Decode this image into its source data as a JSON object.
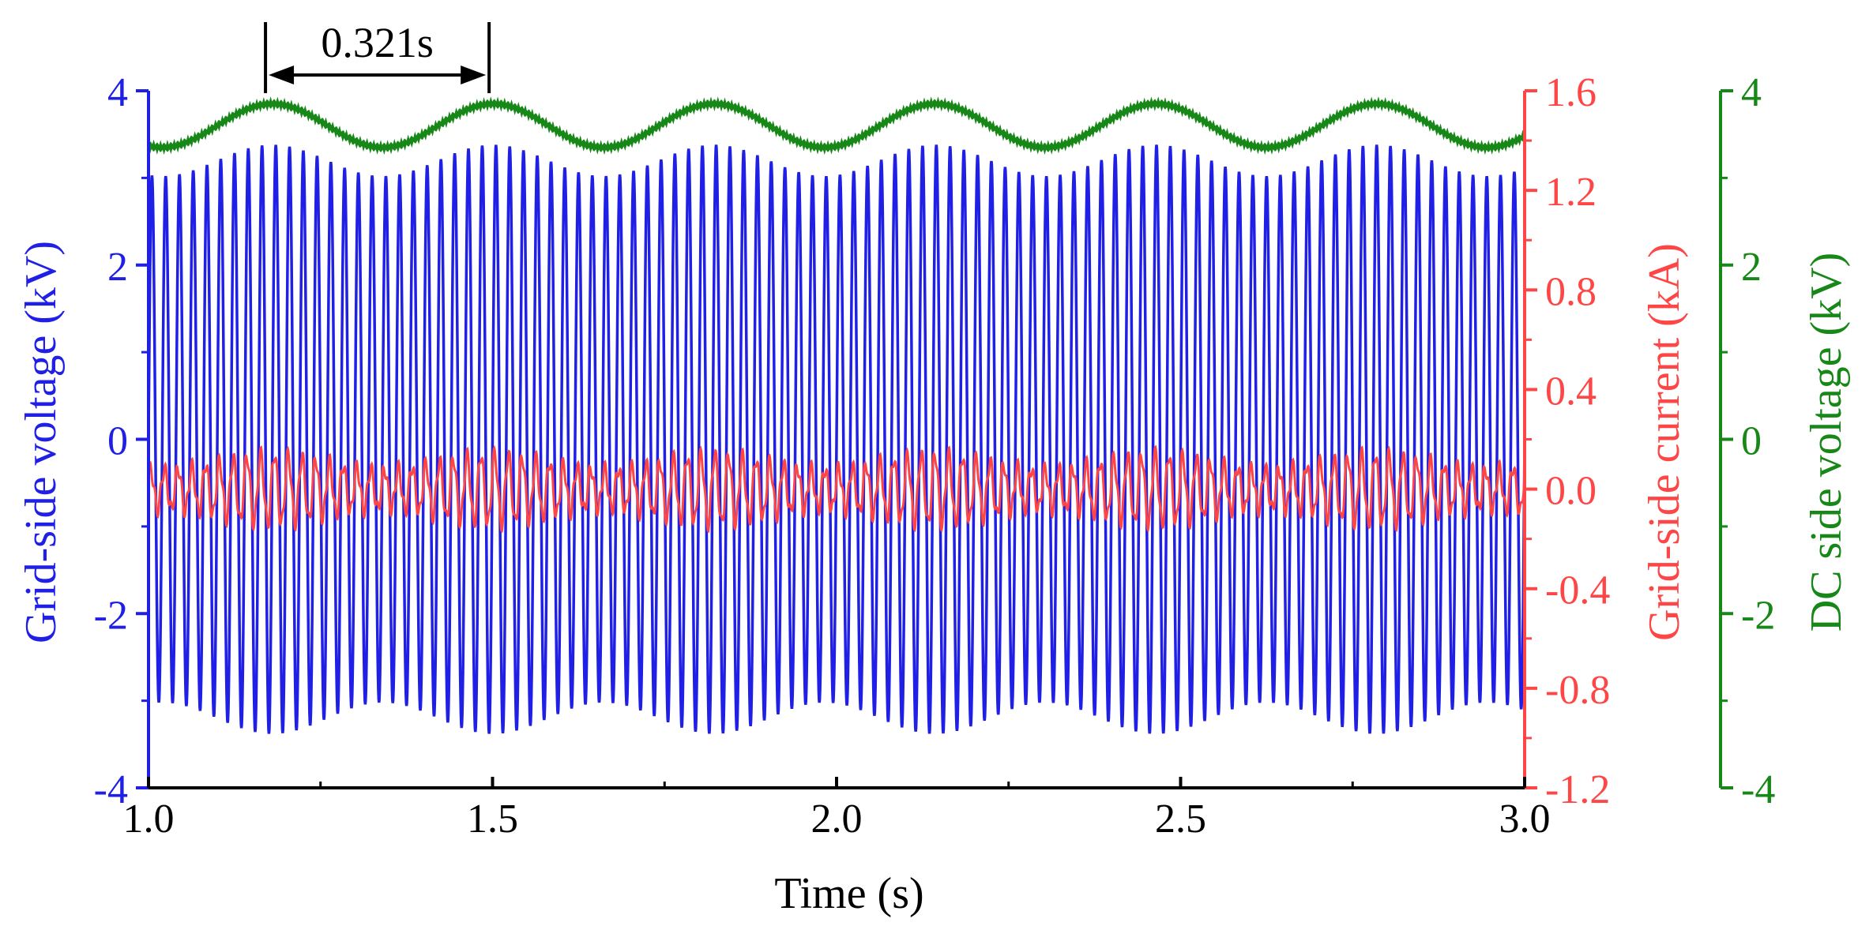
{
  "chart_data": {
    "type": "line",
    "xlabel": "Time (s)",
    "xlim": [
      1.0,
      3.0
    ],
    "x_ticks": [
      "1.0",
      "1.5",
      "2.0",
      "2.5",
      "3.0"
    ],
    "axes": {
      "left": {
        "label": "Grid-side voltage (kV)",
        "ylim": [
          -4,
          4
        ],
        "ticks": [
          "4",
          "2",
          "0",
          "-2",
          "-4"
        ],
        "color": "#1f1fe6"
      },
      "right1": {
        "label": "Grid-side current (kA)",
        "ylim": [
          -1.2,
          1.6
        ],
        "ticks": [
          "1.6",
          "1.2",
          "0.8",
          "0.4",
          "0.0",
          "-0.4",
          "-0.8",
          "-1.2"
        ],
        "color": "#ff4646"
      },
      "right2": {
        "label": "DC side voltage (kV)",
        "ylim": [
          -4,
          4
        ],
        "ticks": [
          "4",
          "2",
          "0",
          "-2",
          "-4"
        ],
        "color": "#178717"
      }
    },
    "series": [
      {
        "axis": "left",
        "color": "#1f1fe6",
        "kind": "ac_voltage",
        "carrier_hz": 50,
        "amplitude_mean_kV": 3.2,
        "amplitude_swing_kV": 0.18,
        "envelope_period_s": 0.321,
        "first_envelope_peak_s": 1.18
      },
      {
        "axis": "right1",
        "color": "#ff4646",
        "kind": "ac_current",
        "carrier_hz": 50,
        "offset_kA": 0.0,
        "amplitude_kA": 0.11,
        "amplitude_swing_kA": 0.03,
        "envelope_period_s": 0.321,
        "first_envelope_peak_s": 1.18
      },
      {
        "axis": "right2",
        "color": "#178717",
        "kind": "dc_voltage",
        "mean_kV": 3.6,
        "swing_kV": 0.25,
        "ripple_kV": 0.02,
        "period_s": 0.321,
        "first_peak_s": 1.18
      }
    ],
    "annotation": {
      "text": "0.321s",
      "x_start": 1.17,
      "x_end": 1.495
    }
  }
}
